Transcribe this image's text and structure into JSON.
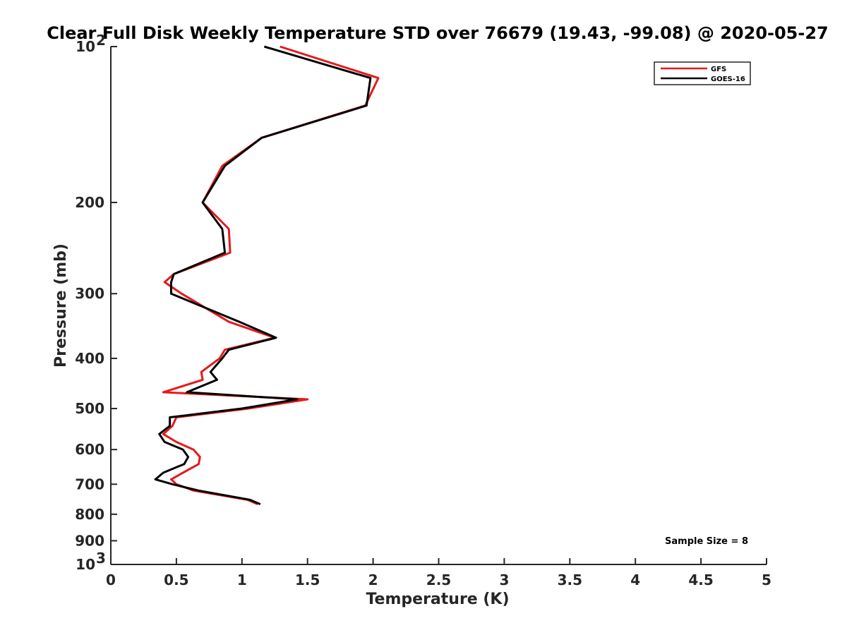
{
  "chart_data": {
    "type": "line",
    "title": "Clear Full Disk Weekly Temperature STD over 76679 (19.43, -99.08) @ 2020-05-27",
    "xlabel": "Temperature (K)",
    "ylabel": "Pressure (mb)",
    "xlim": [
      0,
      5
    ],
    "ylim": [
      100,
      1000
    ],
    "y_scale": "log",
    "y_reversed": true,
    "grid": false,
    "legend_position": "top-right",
    "x_ticks": [
      "0",
      "0.5",
      "1",
      "1.5",
      "2",
      "2.5",
      "3",
      "3.5",
      "4",
      "4.5",
      "5"
    ],
    "y_ticks": [
      {
        "value": 100,
        "label": "10",
        "exp": "2"
      },
      {
        "value": 200,
        "label": "200"
      },
      {
        "value": 300,
        "label": "300"
      },
      {
        "value": 400,
        "label": "400"
      },
      {
        "value": 500,
        "label": "500"
      },
      {
        "value": 600,
        "label": "600"
      },
      {
        "value": 700,
        "label": "700"
      },
      {
        "value": 800,
        "label": "800"
      },
      {
        "value": 900,
        "label": "900"
      },
      {
        "value": 1000,
        "label": "10",
        "exp": "3"
      }
    ],
    "annotation": "Sample Size = 8",
    "series": [
      {
        "name": "GFS",
        "color": "#e41a1c",
        "points": [
          [
            1.29,
            100
          ],
          [
            2.04,
            115
          ],
          [
            1.94,
            130
          ],
          [
            1.15,
            150
          ],
          [
            0.85,
            170
          ],
          [
            0.7,
            200
          ],
          [
            0.9,
            225
          ],
          [
            0.91,
            250
          ],
          [
            0.48,
            275
          ],
          [
            0.41,
            285
          ],
          [
            0.54,
            300
          ],
          [
            0.9,
            340
          ],
          [
            1.25,
            365
          ],
          [
            0.87,
            385
          ],
          [
            0.83,
            400
          ],
          [
            0.69,
            425
          ],
          [
            0.7,
            440
          ],
          [
            0.4,
            465
          ],
          [
            1.5,
            480
          ],
          [
            1.05,
            500
          ],
          [
            0.5,
            520
          ],
          [
            0.47,
            540
          ],
          [
            0.4,
            560
          ],
          [
            0.5,
            580
          ],
          [
            0.63,
            600
          ],
          [
            0.68,
            620
          ],
          [
            0.67,
            640
          ],
          [
            0.55,
            665
          ],
          [
            0.46,
            685
          ],
          [
            0.5,
            700
          ],
          [
            0.63,
            720
          ],
          [
            1.04,
            750
          ],
          [
            1.12,
            765
          ]
        ]
      },
      {
        "name": "GOES-16",
        "color": "#000000",
        "points": [
          [
            1.17,
            100
          ],
          [
            1.98,
            115
          ],
          [
            1.95,
            130
          ],
          [
            1.15,
            150
          ],
          [
            0.87,
            170
          ],
          [
            0.7,
            200
          ],
          [
            0.85,
            225
          ],
          [
            0.87,
            250
          ],
          [
            0.48,
            275
          ],
          [
            0.46,
            285
          ],
          [
            0.46,
            300
          ],
          [
            0.98,
            340
          ],
          [
            1.26,
            365
          ],
          [
            0.9,
            385
          ],
          [
            0.85,
            400
          ],
          [
            0.76,
            425
          ],
          [
            0.81,
            440
          ],
          [
            0.58,
            465
          ],
          [
            1.42,
            480
          ],
          [
            1.0,
            500
          ],
          [
            0.45,
            520
          ],
          [
            0.45,
            540
          ],
          [
            0.37,
            560
          ],
          [
            0.41,
            580
          ],
          [
            0.55,
            600
          ],
          [
            0.59,
            620
          ],
          [
            0.56,
            640
          ],
          [
            0.4,
            665
          ],
          [
            0.34,
            685
          ],
          [
            0.47,
            700
          ],
          [
            0.67,
            720
          ],
          [
            1.06,
            750
          ],
          [
            1.14,
            765
          ]
        ]
      }
    ]
  }
}
